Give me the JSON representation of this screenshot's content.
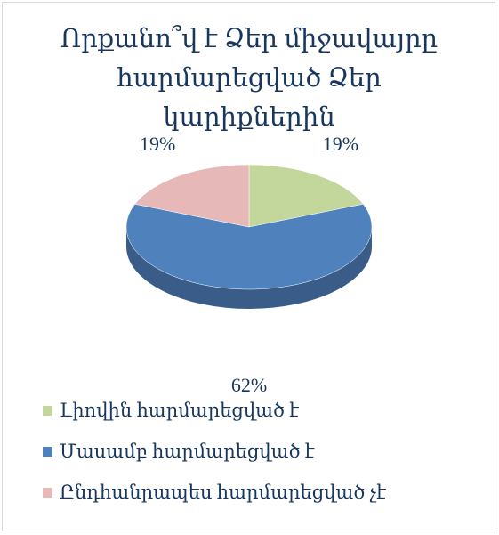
{
  "chart_data": {
    "type": "pie",
    "title": "Որքանո՞վ է Ձեր միջավայրը հարմարեցված Ձեր կարիքներին",
    "categories": [
      "Լիովին հարմարեցված է",
      "Մասամբ հարմարեցված է",
      "Ընդհանրապես հարմարեցված չէ"
    ],
    "values": [
      19,
      62,
      19
    ],
    "value_labels": [
      "19%",
      "62%",
      "19%"
    ],
    "colors": [
      "#c3d69b",
      "#4f81bd",
      "#e6b9b8"
    ],
    "legend": "bottom"
  }
}
